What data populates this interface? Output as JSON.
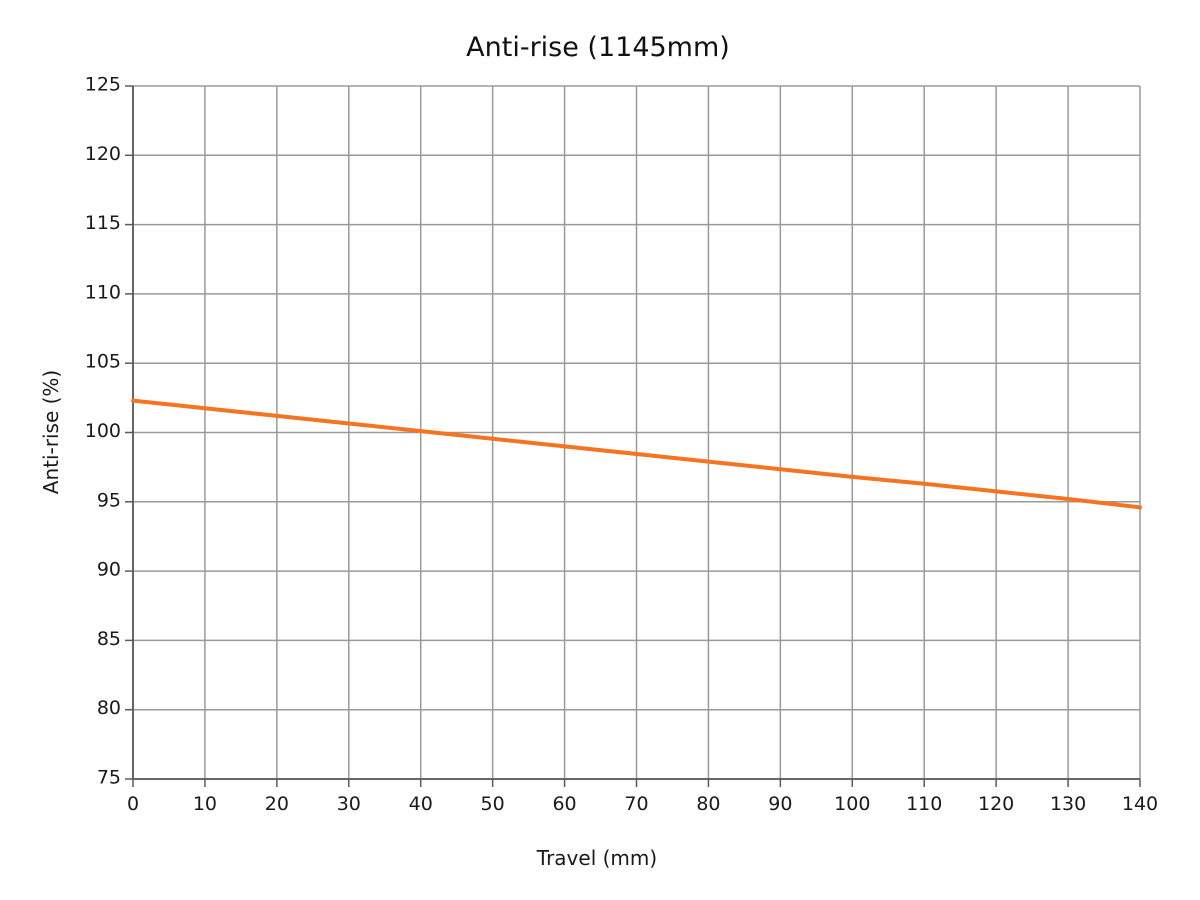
{
  "chart_data": {
    "type": "line",
    "title": "Anti-rise (1145mm)",
    "xlabel": "Travel (mm)",
    "ylabel": "Anti-rise (%)",
    "xlim": [
      0,
      140
    ],
    "ylim": [
      75,
      125
    ],
    "x_ticks": [
      0,
      10,
      20,
      30,
      40,
      50,
      60,
      70,
      80,
      90,
      100,
      110,
      120,
      130,
      140
    ],
    "y_ticks": [
      75,
      80,
      85,
      90,
      95,
      100,
      105,
      110,
      115,
      120,
      125
    ],
    "grid": true,
    "legend": "none",
    "series": [
      {
        "color": "#F47421",
        "x": [
          0,
          10,
          20,
          30,
          40,
          50,
          60,
          70,
          80,
          90,
          100,
          110,
          120,
          130,
          140
        ],
        "y": [
          102.3,
          101.75,
          101.2,
          100.65,
          100.1,
          99.55,
          99.0,
          98.45,
          97.9,
          97.35,
          96.8,
          96.3,
          95.75,
          95.2,
          94.6
        ]
      }
    ],
    "colors": {
      "grid": "#9a9a9a",
      "axis": "#5a5a5a",
      "text": "#1a1a1a"
    }
  }
}
